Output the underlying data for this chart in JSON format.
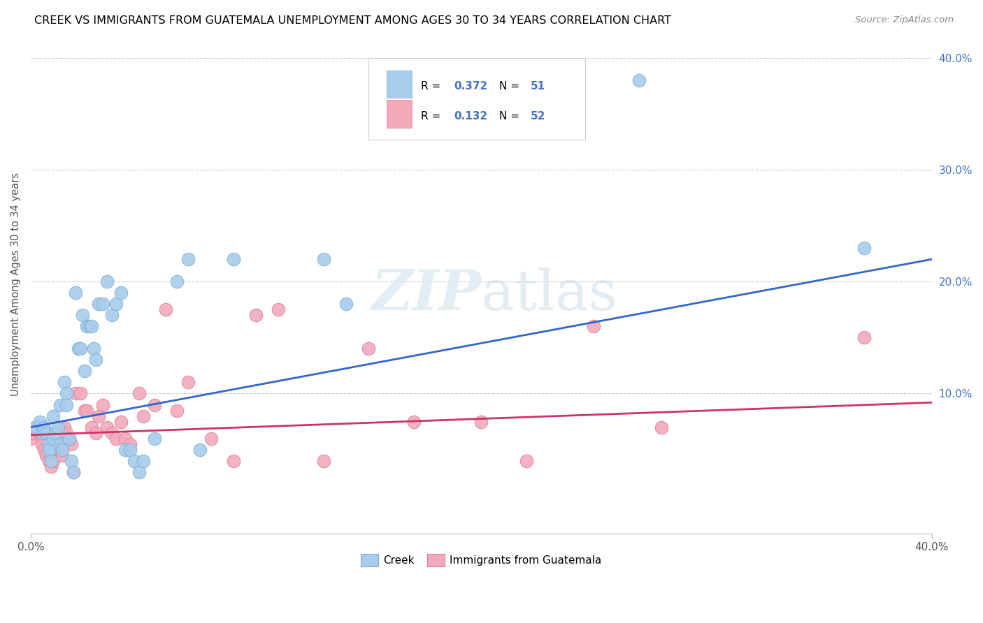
{
  "title": "CREEK VS IMMIGRANTS FROM GUATEMALA UNEMPLOYMENT AMONG AGES 30 TO 34 YEARS CORRELATION CHART",
  "source": "Source: ZipAtlas.com",
  "ylabel": "Unemployment Among Ages 30 to 34 years",
  "xlim": [
    0.0,
    0.4
  ],
  "ylim": [
    -0.025,
    0.42
  ],
  "creek_color": "#A8CCEC",
  "creek_edge_color": "#7AADD4",
  "guatemala_color": "#F2AABB",
  "guatemala_edge_color": "#D98099",
  "creek_line_color": "#3366CC",
  "guatemala_line_color": "#CC3366",
  "creek_R": 0.372,
  "creek_N": 51,
  "guatemala_R": 0.132,
  "guatemala_N": 52,
  "legend_text_color": "#4472C4",
  "background_color": "#ffffff",
  "grid_color": "#cccccc",
  "creek_x": [
    0.002,
    0.004,
    0.005,
    0.006,
    0.007,
    0.008,
    0.008,
    0.009,
    0.01,
    0.01,
    0.011,
    0.012,
    0.013,
    0.013,
    0.014,
    0.015,
    0.016,
    0.016,
    0.017,
    0.018,
    0.019,
    0.02,
    0.021,
    0.022,
    0.023,
    0.024,
    0.025,
    0.026,
    0.027,
    0.028,
    0.029,
    0.03,
    0.032,
    0.034,
    0.036,
    0.038,
    0.04,
    0.042,
    0.044,
    0.046,
    0.048,
    0.05,
    0.055,
    0.065,
    0.07,
    0.075,
    0.09,
    0.13,
    0.14,
    0.27,
    0.37
  ],
  "creek_y": [
    0.07,
    0.075,
    0.065,
    0.07,
    0.065,
    0.055,
    0.05,
    0.04,
    0.08,
    0.06,
    0.065,
    0.07,
    0.09,
    0.055,
    0.05,
    0.11,
    0.1,
    0.09,
    0.06,
    0.04,
    0.03,
    0.19,
    0.14,
    0.14,
    0.17,
    0.12,
    0.16,
    0.16,
    0.16,
    0.14,
    0.13,
    0.18,
    0.18,
    0.2,
    0.17,
    0.18,
    0.19,
    0.05,
    0.05,
    0.04,
    0.03,
    0.04,
    0.06,
    0.2,
    0.22,
    0.05,
    0.22,
    0.22,
    0.18,
    0.38,
    0.23
  ],
  "guatemala_x": [
    0.0,
    0.001,
    0.003,
    0.004,
    0.005,
    0.005,
    0.006,
    0.007,
    0.008,
    0.009,
    0.01,
    0.011,
    0.012,
    0.013,
    0.014,
    0.015,
    0.016,
    0.017,
    0.018,
    0.019,
    0.02,
    0.022,
    0.024,
    0.025,
    0.027,
    0.029,
    0.03,
    0.032,
    0.034,
    0.036,
    0.038,
    0.04,
    0.042,
    0.044,
    0.048,
    0.05,
    0.055,
    0.06,
    0.065,
    0.07,
    0.08,
    0.09,
    0.1,
    0.11,
    0.13,
    0.15,
    0.17,
    0.2,
    0.22,
    0.25,
    0.28,
    0.37
  ],
  "guatemala_y": [
    0.06,
    0.065,
    0.07,
    0.065,
    0.06,
    0.055,
    0.05,
    0.045,
    0.04,
    0.035,
    0.04,
    0.06,
    0.055,
    0.05,
    0.045,
    0.07,
    0.065,
    0.06,
    0.055,
    0.03,
    0.1,
    0.1,
    0.085,
    0.085,
    0.07,
    0.065,
    0.08,
    0.09,
    0.07,
    0.065,
    0.06,
    0.075,
    0.06,
    0.055,
    0.1,
    0.08,
    0.09,
    0.175,
    0.085,
    0.11,
    0.06,
    0.04,
    0.17,
    0.175,
    0.04,
    0.14,
    0.075,
    0.075,
    0.04,
    0.16,
    0.07,
    0.15
  ],
  "creek_line_x0": 0.0,
  "creek_line_y0": 0.07,
  "creek_line_x1": 0.4,
  "creek_line_y1": 0.22,
  "guatemala_line_x0": 0.0,
  "guatemala_line_y0": 0.063,
  "guatemala_line_x1": 0.4,
  "guatemala_line_y1": 0.092
}
